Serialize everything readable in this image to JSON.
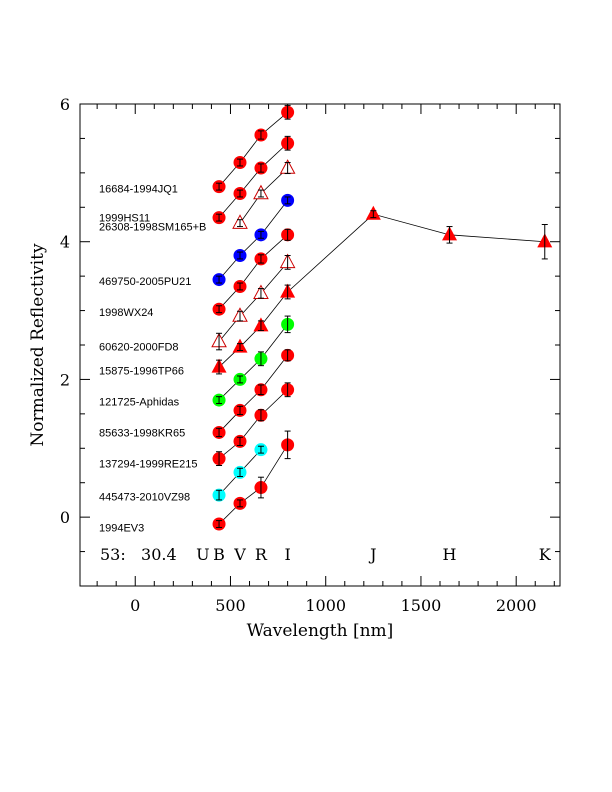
{
  "chart_data": {
    "type": "scatter",
    "title": "",
    "xlabel": "Wavelength [nm]",
    "ylabel": "Normalized Reflectivity",
    "xlim": [
      -290,
      2230
    ],
    "ylim": [
      -1,
      6
    ],
    "xticks": [
      0,
      500,
      1000,
      1500,
      2000
    ],
    "yticks": [
      0,
      2,
      4,
      6
    ],
    "grid": false,
    "annotation": "53:   30.4",
    "band_labels": [
      {
        "text": "U",
        "x": 355
      },
      {
        "text": "B",
        "x": 440
      },
      {
        "text": "V",
        "x": 550
      },
      {
        "text": "R",
        "x": 660
      },
      {
        "text": "I",
        "x": 800
      },
      {
        "text": "J",
        "x": 1250
      },
      {
        "text": "H",
        "x": 1650
      },
      {
        "text": "K",
        "x": 2150
      }
    ],
    "colors": {
      "red": "#ff0000",
      "blue": "#0000ff",
      "green": "#00ff00",
      "cyan": "#00ffff",
      "tri_open": "#cc0000"
    },
    "series": [
      {
        "name": "1994EV3",
        "label_y": -0.15,
        "marker": "circle",
        "color": "#ff0000",
        "points": [
          {
            "x": 440,
            "y": -0.1,
            "err": 0.05
          },
          {
            "x": 550,
            "y": 0.2,
            "err": 0.05
          },
          {
            "x": 660,
            "y": 0.43,
            "err": 0.15
          },
          {
            "x": 800,
            "y": 1.05,
            "err": 0.2
          }
        ]
      },
      {
        "name": "445473-2010VZ98",
        "label_y": 0.3,
        "marker": "circle",
        "color": "#00ffff",
        "points": [
          {
            "x": 440,
            "y": 0.32,
            "err": 0.07
          },
          {
            "x": 550,
            "y": 0.65,
            "err": 0.06
          },
          {
            "x": 660,
            "y": 0.98,
            "err": 0.05
          }
        ]
      },
      {
        "name": "137294-1999RE215",
        "label_y": 0.78,
        "marker": "circle",
        "color": "#ff0000",
        "points": [
          {
            "x": 440,
            "y": 0.85,
            "err": 0.1
          },
          {
            "x": 550,
            "y": 1.1,
            "err": 0.06
          },
          {
            "x": 660,
            "y": 1.48,
            "err": 0.08
          },
          {
            "x": 800,
            "y": 1.85,
            "err": 0.1
          }
        ]
      },
      {
        "name": "85633-1998KR65",
        "label_y": 1.23,
        "marker": "circle",
        "color": "#ff0000",
        "points": [
          {
            "x": 440,
            "y": 1.23,
            "err": 0.06
          },
          {
            "x": 550,
            "y": 1.55,
            "err": 0.06
          },
          {
            "x": 660,
            "y": 1.85,
            "err": 0.07
          },
          {
            "x": 800,
            "y": 2.35,
            "err": 0.08
          }
        ]
      },
      {
        "name": "121725-Aphidas",
        "label_y": 1.68,
        "marker": "circle",
        "color": "#00ff00",
        "points": [
          {
            "x": 440,
            "y": 1.7,
            "err": 0.05
          },
          {
            "x": 550,
            "y": 2.0,
            "err": 0.05
          },
          {
            "x": 660,
            "y": 2.3,
            "err": 0.1
          },
          {
            "x": 800,
            "y": 2.8,
            "err": 0.12
          }
        ]
      },
      {
        "name": "15875-1996TP66",
        "label_y": 2.13,
        "marker": "triangle_filled",
        "color": "#ff0000",
        "points": [
          {
            "x": 440,
            "y": 2.18,
            "err": 0.1
          },
          {
            "x": 550,
            "y": 2.47,
            "err": 0.05
          },
          {
            "x": 660,
            "y": 2.78,
            "err": 0.07
          },
          {
            "x": 800,
            "y": 3.27,
            "err": 0.1
          },
          {
            "x": 1250,
            "y": 4.4,
            "err": 0.05
          },
          {
            "x": 1650,
            "y": 4.1,
            "err": 0.12
          },
          {
            "x": 2150,
            "y": 4.0,
            "err": 0.25
          }
        ]
      },
      {
        "name": "60620-2000FD8",
        "label_y": 2.48,
        "marker": "triangle_open",
        "color": "#cc0000",
        "points": [
          {
            "x": 440,
            "y": 2.55,
            "err": 0.12
          },
          {
            "x": 550,
            "y": 2.92,
            "err": 0.07
          },
          {
            "x": 660,
            "y": 3.25,
            "err": 0.07
          },
          {
            "x": 800,
            "y": 3.7,
            "err": 0.1
          }
        ]
      },
      {
        "name": "1998WX24",
        "label_y": 2.98,
        "marker": "circle",
        "color": "#ff0000",
        "points": [
          {
            "x": 440,
            "y": 3.02,
            "err": 0.05
          },
          {
            "x": 550,
            "y": 3.35,
            "err": 0.05
          },
          {
            "x": 660,
            "y": 3.75,
            "err": 0.06
          },
          {
            "x": 800,
            "y": 4.1,
            "err": 0.08
          }
        ]
      },
      {
        "name": "469750-2005PU21",
        "label_y": 3.43,
        "marker": "circle",
        "color": "#0000ff",
        "points": [
          {
            "x": 440,
            "y": 3.45,
            "err": 0.05
          },
          {
            "x": 550,
            "y": 3.8,
            "err": 0.05
          },
          {
            "x": 660,
            "y": 4.1,
            "err": 0.05
          },
          {
            "x": 800,
            "y": 4.6,
            "err": 0.05
          }
        ]
      },
      {
        "name": "26308-1998SM165+B",
        "label_y": 4.22,
        "marker": "triangle_open",
        "color": "#cc0000",
        "points": [
          {
            "x": 550,
            "y": 4.27,
            "err": 0.05
          },
          {
            "x": 660,
            "y": 4.7,
            "err": 0.05
          },
          {
            "x": 800,
            "y": 5.07,
            "err": 0.08
          }
        ]
      },
      {
        "name": "1999HS11",
        "label_y": 4.35,
        "marker": "circle",
        "color": "#ff0000",
        "points": [
          {
            "x": 440,
            "y": 4.35,
            "err": 0.05
          },
          {
            "x": 550,
            "y": 4.7,
            "err": 0.05
          },
          {
            "x": 660,
            "y": 5.07,
            "err": 0.06
          },
          {
            "x": 800,
            "y": 5.43,
            "err": 0.1
          }
        ]
      },
      {
        "name": "16684-1994JQ1",
        "label_y": 4.77,
        "marker": "circle",
        "color": "#ff0000",
        "points": [
          {
            "x": 440,
            "y": 4.8,
            "err": 0.05
          },
          {
            "x": 550,
            "y": 5.15,
            "err": 0.05
          },
          {
            "x": 660,
            "y": 5.55,
            "err": 0.06
          },
          {
            "x": 800,
            "y": 5.88,
            "err": 0.1
          }
        ]
      }
    ]
  }
}
